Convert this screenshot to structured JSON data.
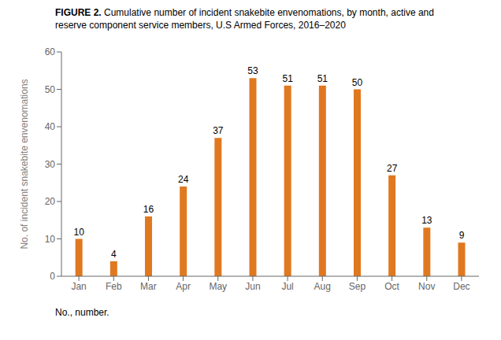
{
  "chart_data": {
    "type": "bar",
    "title": "FIGURE 2. Cumulative number of incident snakebite envenomations, by month, active and\nreserve component service members, U.S Armed Forces, 2016–2020",
    "categories": [
      "Jan",
      "Feb",
      "Mar",
      "Apr",
      "May",
      "Jun",
      "Jul",
      "Aug",
      "Sep",
      "Oct",
      "Nov",
      "Dec"
    ],
    "values": [
      10,
      4,
      16,
      24,
      37,
      53,
      51,
      51,
      50,
      27,
      13,
      9
    ],
    "color": "#E07820",
    "ylim": [
      0,
      60
    ],
    "yticks": [
      0,
      10,
      20,
      30,
      40,
      50,
      60
    ],
    "ylabel": "No. of incident snakebite envenomations",
    "annotations": [
      "No., number."
    ],
    "data_labels": true,
    "grid": false
  }
}
